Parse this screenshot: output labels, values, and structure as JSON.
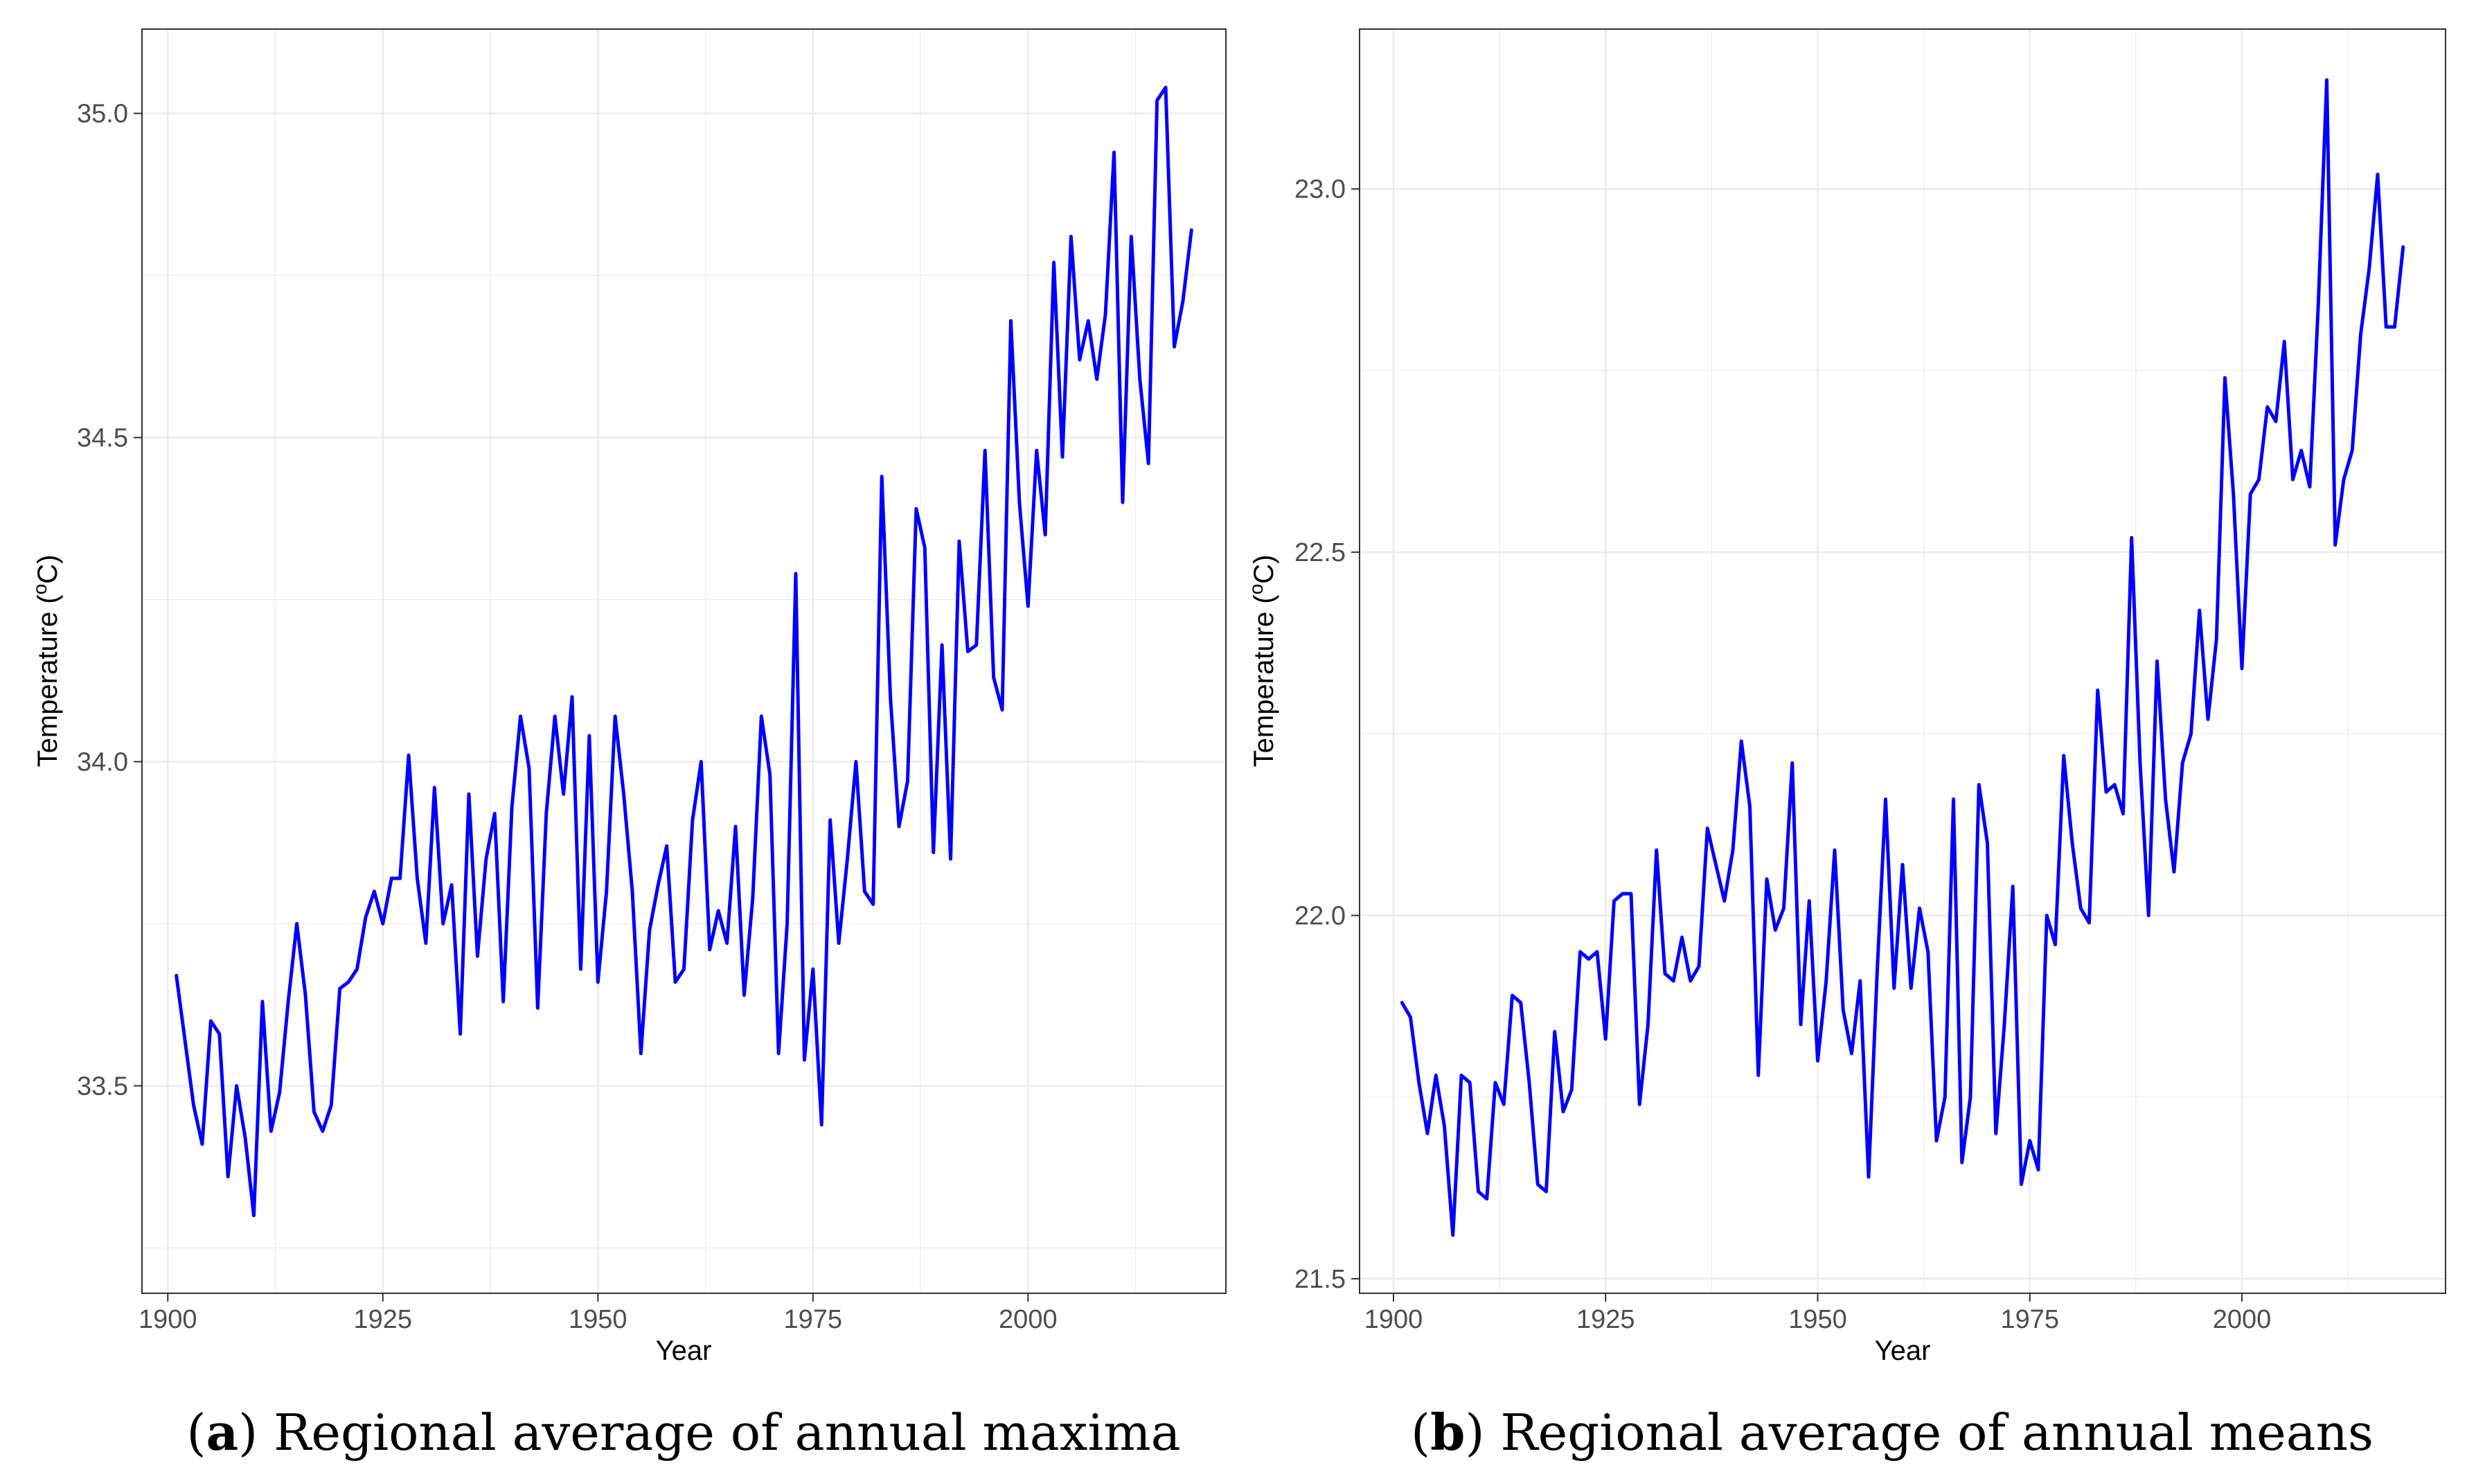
{
  "figure": {
    "panels": [
      {
        "label": "a",
        "caption_text": " Regional average of annual maxima",
        "caption_open": "(",
        "caption_close": ")"
      },
      {
        "label": "b",
        "caption_text": " Regional average of annual means",
        "caption_open": "(",
        "caption_close": ")"
      }
    ],
    "line_color": "#0000ff",
    "grid_color": "#ebebeb",
    "panel_border_color": "#333333"
  },
  "chart_data": [
    {
      "type": "line",
      "title": "",
      "xlabel": "Year",
      "ylabel_main": "Temperature (",
      "ylabel_sup": "o",
      "ylabel_unit": "C)",
      "xlim": [
        1897,
        2023
      ],
      "ylim": [
        33.18,
        35.13
      ],
      "xticks": [
        1900,
        1925,
        1950,
        1975,
        2000
      ],
      "xtick_labels": [
        "1900",
        "1925",
        "1950",
        "1975",
        "2000"
      ],
      "yticks": [
        33.5,
        34.0,
        34.5,
        35.0
      ],
      "ytick_labels": [
        "33.5",
        "34.0",
        "34.5",
        "35.0"
      ],
      "grid": true,
      "x": [
        1901,
        1902,
        1903,
        1904,
        1905,
        1906,
        1907,
        1908,
        1909,
        1910,
        1911,
        1912,
        1913,
        1914,
        1915,
        1916,
        1917,
        1918,
        1919,
        1920,
        1921,
        1922,
        1923,
        1924,
        1925,
        1926,
        1927,
        1928,
        1929,
        1930,
        1931,
        1932,
        1933,
        1934,
        1935,
        1936,
        1937,
        1938,
        1939,
        1940,
        1941,
        1942,
        1943,
        1944,
        1945,
        1946,
        1947,
        1948,
        1949,
        1950,
        1951,
        1952,
        1953,
        1954,
        1955,
        1956,
        1957,
        1958,
        1959,
        1960,
        1961,
        1962,
        1963,
        1964,
        1965,
        1966,
        1967,
        1968,
        1969,
        1970,
        1971,
        1972,
        1973,
        1974,
        1975,
        1976,
        1977,
        1978,
        1979,
        1980,
        1981,
        1982,
        1983,
        1984,
        1985,
        1986,
        1987,
        1988,
        1989,
        1990,
        1991,
        1992,
        1993,
        1994,
        1995,
        1996,
        1997,
        1998,
        1999,
        2000,
        2001,
        2002,
        2003,
        2004,
        2005,
        2006,
        2007,
        2008,
        2009,
        2010,
        2011,
        2012,
        2013,
        2014,
        2015,
        2016,
        2017,
        2018,
        2019
      ],
      "series": [
        {
          "name": "Regional average of annual maxima",
          "values": [
            33.67,
            33.57,
            33.47,
            33.41,
            33.6,
            33.58,
            33.36,
            33.5,
            33.42,
            33.3,
            33.63,
            33.43,
            33.49,
            33.63,
            33.75,
            33.64,
            33.46,
            33.43,
            33.47,
            33.65,
            33.66,
            33.68,
            33.76,
            33.8,
            33.75,
            33.82,
            33.82,
            34.01,
            33.82,
            33.72,
            33.96,
            33.75,
            33.81,
            33.58,
            33.95,
            33.7,
            33.85,
            33.92,
            33.63,
            33.93,
            34.07,
            33.99,
            33.62,
            33.92,
            34.07,
            33.95,
            34.1,
            33.68,
            34.04,
            33.66,
            33.8,
            34.07,
            33.95,
            33.8,
            33.55,
            33.74,
            33.81,
            33.87,
            33.66,
            33.68,
            33.91,
            34.0,
            33.71,
            33.77,
            33.72,
            33.9,
            33.64,
            33.79,
            34.07,
            33.98,
            33.55,
            33.75,
            34.29,
            33.54,
            33.68,
            33.44,
            33.91,
            33.72,
            33.85,
            34.0,
            33.8,
            33.78,
            34.44,
            34.1,
            33.9,
            33.97,
            34.39,
            34.33,
            33.86,
            34.18,
            33.85,
            34.34,
            34.17,
            34.18,
            34.48,
            34.13,
            34.08,
            34.68,
            34.4,
            34.24,
            34.48,
            34.35,
            34.77,
            34.47,
            34.81,
            34.62,
            34.68,
            34.59,
            34.69,
            34.94,
            34.4,
            34.81,
            34.59,
            34.46,
            35.02,
            35.04,
            34.64,
            34.71,
            34.82
          ]
        }
      ]
    },
    {
      "type": "line",
      "title": "",
      "xlabel": "Year",
      "ylabel_main": "Temperature (",
      "ylabel_sup": "o",
      "ylabel_unit": "C)",
      "xlim": [
        1896,
        2024
      ],
      "ylim": [
        21.48,
        23.22
      ],
      "xticks": [
        1900,
        1925,
        1950,
        1975,
        2000
      ],
      "xtick_labels": [
        "1900",
        "1925",
        "1950",
        "1975",
        "2000"
      ],
      "yticks": [
        21.5,
        22.0,
        22.5,
        23.0
      ],
      "ytick_labels": [
        "21.5",
        "22.0",
        "22.5",
        "23.0"
      ],
      "grid": true,
      "x": [
        1901,
        1902,
        1903,
        1904,
        1905,
        1906,
        1907,
        1908,
        1909,
        1910,
        1911,
        1912,
        1913,
        1914,
        1915,
        1916,
        1917,
        1918,
        1919,
        1920,
        1921,
        1922,
        1923,
        1924,
        1925,
        1926,
        1927,
        1928,
        1929,
        1930,
        1931,
        1932,
        1933,
        1934,
        1935,
        1936,
        1937,
        1938,
        1939,
        1940,
        1941,
        1942,
        1943,
        1944,
        1945,
        1946,
        1947,
        1948,
        1949,
        1950,
        1951,
        1952,
        1953,
        1954,
        1955,
        1956,
        1957,
        1958,
        1959,
        1960,
        1961,
        1962,
        1963,
        1964,
        1965,
        1966,
        1967,
        1968,
        1969,
        1970,
        1971,
        1972,
        1973,
        1974,
        1975,
        1976,
        1977,
        1978,
        1979,
        1980,
        1981,
        1982,
        1983,
        1984,
        1985,
        1986,
        1987,
        1988,
        1989,
        1990,
        1991,
        1992,
        1993,
        1994,
        1995,
        1996,
        1997,
        1998,
        1999,
        2000,
        2001,
        2002,
        2003,
        2004,
        2005,
        2006,
        2007,
        2008,
        2009,
        2010,
        2011,
        2012,
        2013,
        2014,
        2015,
        2016,
        2017,
        2018,
        2019
      ],
      "series": [
        {
          "name": "Regional average of annual means",
          "values": [
            21.88,
            21.86,
            21.77,
            21.7,
            21.78,
            21.71,
            21.56,
            21.78,
            21.77,
            21.62,
            21.61,
            21.77,
            21.74,
            21.89,
            21.88,
            21.77,
            21.63,
            21.62,
            21.84,
            21.73,
            21.76,
            21.95,
            21.94,
            21.95,
            21.83,
            22.02,
            22.03,
            22.03,
            21.74,
            21.85,
            22.09,
            21.92,
            21.91,
            21.97,
            21.91,
            21.93,
            22.12,
            22.07,
            22.02,
            22.09,
            22.24,
            22.15,
            21.78,
            22.05,
            21.98,
            22.01,
            22.21,
            21.85,
            22.02,
            21.8,
            21.91,
            22.09,
            21.87,
            21.81,
            21.91,
            21.64,
            21.92,
            22.16,
            21.9,
            22.07,
            21.9,
            22.01,
            21.95,
            21.69,
            21.75,
            22.16,
            21.66,
            21.75,
            22.18,
            22.1,
            21.7,
            21.85,
            22.04,
            21.63,
            21.69,
            21.65,
            22.0,
            21.96,
            22.22,
            22.1,
            22.01,
            21.99,
            22.31,
            22.17,
            22.18,
            22.14,
            22.52,
            22.21,
            22.0,
            22.35,
            22.16,
            22.06,
            22.21,
            22.25,
            22.42,
            22.27,
            22.38,
            22.74,
            22.58,
            22.34,
            22.58,
            22.6,
            22.7,
            22.68,
            22.79,
            22.6,
            22.64,
            22.59,
            22.84,
            23.15,
            22.51,
            22.6,
            22.64,
            22.8,
            22.89,
            23.02,
            22.81,
            22.81,
            22.92
          ]
        }
      ]
    }
  ]
}
